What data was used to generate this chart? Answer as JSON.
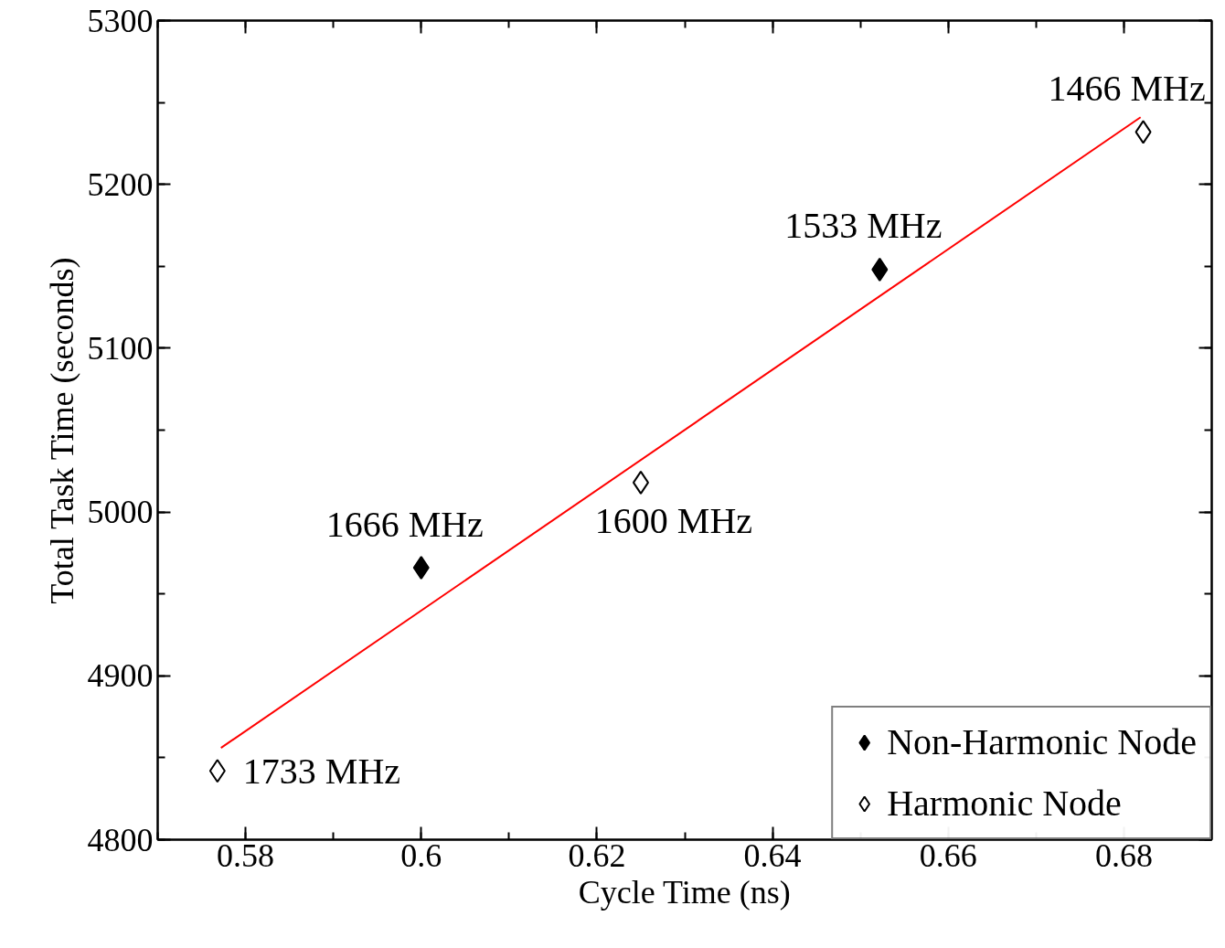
{
  "chart_data": {
    "type": "scatter",
    "xlabel": "Cycle Time (ns)",
    "ylabel": "Total Task Time (seconds)",
    "xlim": [
      0.57,
      0.69
    ],
    "xticks": [
      0.58,
      0.6,
      0.62,
      0.64,
      0.66,
      0.68
    ],
    "ylim": [
      4800,
      5300
    ],
    "yticks": [
      4800,
      4900,
      5000,
      5100,
      5200,
      5300
    ],
    "grid": false,
    "legend": "bottom right",
    "marker": "diamond",
    "series": [
      {
        "name": "Non-Harmonic Node",
        "color": "#000000",
        "x": [
          0.6,
          0.6522
        ],
        "values": [
          4966,
          5148
        ]
      },
      {
        "name": "Harmonic Node",
        "color": "#ffffff",
        "x": [
          0.5768,
          0.625,
          0.6822
        ],
        "values": [
          4842,
          5018,
          5232
        ]
      },
      {
        "type": "line",
        "color": "#ff0000",
        "marker": "none",
        "x": [
          0.5772,
          0.6819
        ],
        "values": [
          4856,
          5241
        ]
      }
    ],
    "annotations": [
      {
        "text": "1466 MHz",
        "x": 0.6822,
        "y": 5232
      },
      {
        "text": "1533 MHz",
        "x": 0.6522,
        "y": 5148
      },
      {
        "text": "1666 MHz",
        "x": 0.6,
        "y": 4966
      },
      {
        "text": "1600 MHz",
        "x": 0.625,
        "y": 5018
      },
      {
        "text": "1733 MHz",
        "x": 0.5768,
        "y": 4842
      }
    ]
  }
}
